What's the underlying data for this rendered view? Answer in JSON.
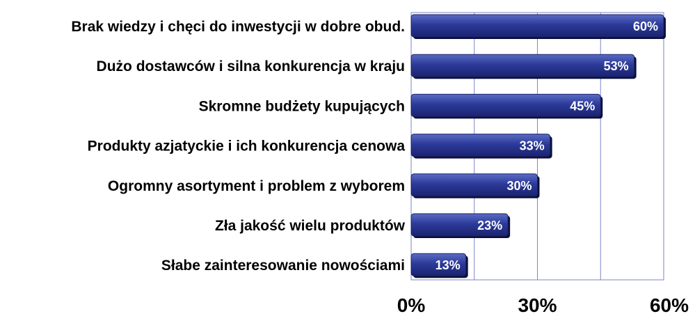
{
  "chart_data": {
    "type": "bar",
    "orientation": "horizontal",
    "categories": [
      "Brak wiedzy i chęci do inwestycji w dobre obud.",
      "Dużo dostawców i silna konkurencja w kraju",
      "Skromne budżety kupujących",
      "Produkty azjatyckie i ich konkurencja cenowa",
      "Ogromny asortyment i problem z wyborem",
      "Zła jakość wielu produktów",
      "Słabe zainteresowanie nowościami"
    ],
    "values": [
      60,
      53,
      45,
      33,
      30,
      23,
      13
    ],
    "value_labels": [
      "60%",
      "53%",
      "45%",
      "33%",
      "30%",
      "23%",
      "13%"
    ],
    "xlim": [
      0,
      60
    ],
    "x_ticks": [
      0,
      30,
      60
    ],
    "x_tick_labels": [
      "0%",
      "30%",
      "60%"
    ],
    "grid": true,
    "legend": "none",
    "colors": {
      "bar_top": "#5a6cc4",
      "bar_mid": "#2c3a99",
      "bar_bottom": "#1b2470",
      "bar_shadow": "#0a0f3a",
      "plot_border": "#7b86c9",
      "grid": "#7b86c9"
    }
  }
}
